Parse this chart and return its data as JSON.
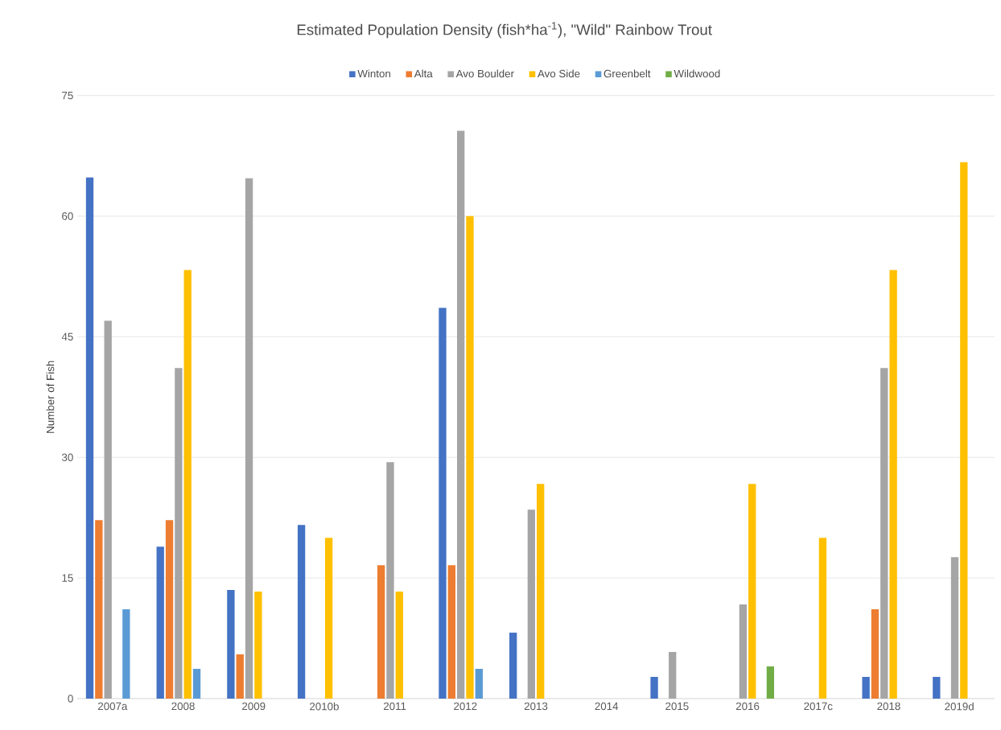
{
  "chart_data": {
    "type": "bar",
    "title": "Estimated Population Density (fish*ha$^{-1}$), \"Wild\" Rainbow Trout",
    "ylabel": "Number of Fish",
    "categories": [
      "2007a",
      "2008",
      "2009",
      "2010b",
      "2011",
      "2012",
      "2013",
      "2014",
      "2015",
      "2016",
      "2017c",
      "2018",
      "2019d"
    ],
    "series": [
      {
        "name": "Winton",
        "color": "#4472c4",
        "values": [
          64.8,
          18.9,
          13.5,
          21.6,
          null,
          48.6,
          8.2,
          null,
          2.7,
          null,
          null,
          2.7,
          2.7
        ]
      },
      {
        "name": "Alta",
        "color": "#ed7d31",
        "values": [
          22.2,
          22.2,
          5.5,
          null,
          16.6,
          16.6,
          null,
          null,
          null,
          null,
          null,
          11.1,
          null
        ]
      },
      {
        "name": "Avo Boulder",
        "color": "#a5a5a5",
        "values": [
          47.0,
          41.1,
          64.7,
          null,
          29.4,
          70.6,
          23.5,
          null,
          5.8,
          11.7,
          null,
          41.1,
          17.6
        ]
      },
      {
        "name": "Avo Side",
        "color": "#ffc000",
        "values": [
          null,
          53.3,
          13.3,
          20.0,
          13.3,
          60.0,
          26.7,
          null,
          null,
          26.7,
          20.0,
          53.3,
          66.7
        ]
      },
      {
        "name": "Greenbelt",
        "color": "#5b9bd5",
        "values": [
          11.1,
          3.7,
          null,
          null,
          null,
          3.7,
          null,
          null,
          null,
          null,
          null,
          null,
          null
        ]
      },
      {
        "name": "Wildwood",
        "color": "#70ad47",
        "values": [
          null,
          null,
          null,
          null,
          null,
          null,
          null,
          null,
          null,
          4.0,
          null,
          null,
          null
        ]
      }
    ],
    "ylim": [
      0,
      75
    ],
    "yticks": [
      0,
      15,
      30,
      45,
      60,
      75
    ],
    "grid": "y",
    "legend": "top"
  }
}
